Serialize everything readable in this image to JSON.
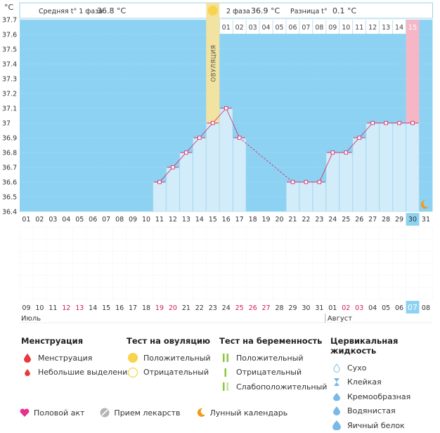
{
  "chart_data": {
    "type": "line",
    "ylabel": "°C",
    "ylim": [
      36.4,
      37.7
    ],
    "yticks": [
      "37.7",
      "37.6",
      "37.5",
      "37.4",
      "37.3",
      "37.2",
      "37.1",
      "37",
      "36.9",
      "36.8",
      "36.7",
      "36.6",
      "36.5",
      "36.4"
    ],
    "cycle_days": [
      "01",
      "02",
      "03",
      "04",
      "05",
      "06",
      "07",
      "08",
      "09",
      "10",
      "11",
      "12",
      "13",
      "14",
      "15",
      "16",
      "17",
      "18",
      "19",
      "20",
      "21",
      "22",
      "23",
      "24",
      "25",
      "26",
      "27",
      "28",
      "29",
      "30",
      "31"
    ],
    "temps": [
      null,
      null,
      null,
      null,
      null,
      null,
      null,
      null,
      null,
      null,
      36.6,
      36.7,
      36.8,
      36.9,
      37.0,
      37.1,
      36.9,
      null,
      null,
      null,
      36.6,
      36.6,
      36.6,
      36.8,
      36.8,
      36.9,
      37.0,
      37.0,
      37.0,
      37.0,
      null
    ],
    "phase2_days": [
      "01",
      "02",
      "03",
      "04",
      "05",
      "06",
      "07",
      "08",
      "09",
      "10",
      "11",
      "12",
      "13",
      "14",
      "15"
    ],
    "ovulation_day": 15,
    "predicted_period_day": 30,
    "today_day": 30,
    "dates": [
      "09",
      "10",
      "11",
      "12",
      "13",
      "14",
      "15",
      "16",
      "17",
      "18",
      "19",
      "20",
      "21",
      "22",
      "23",
      "24",
      "25",
      "26",
      "27",
      "28",
      "29",
      "30",
      "31",
      "01",
      "02",
      "03",
      "04",
      "05",
      "06",
      "07",
      "08"
    ],
    "highlight_dates": [
      3,
      4,
      10,
      11,
      16,
      17,
      18,
      24,
      25
    ],
    "month1": "Июль",
    "month2": "Август"
  },
  "header": {
    "avg1_label": "Средняя t° 1 фаза",
    "avg1_value": "36.8 °C",
    "avg2_label": "2 фаза",
    "avg2_value": "36.9 °C",
    "diff_label": "Разница t°",
    "diff_value": "0.1 °C",
    "ovulation_label": "ОВУЛЯЦИЯ"
  },
  "legend": {
    "menstruation": {
      "title": "Менструация",
      "items": [
        "Менструация",
        "Небольшие выделения"
      ]
    },
    "ovulation_test": {
      "title": "Тест на овуляцию",
      "items": [
        "Положительный",
        "Отрицательный"
      ]
    },
    "pregnancy_test": {
      "title": "Тест на беременность",
      "items": [
        "Положительный",
        "Отрицательный",
        "Слабоположительный"
      ]
    },
    "cervical": {
      "title": "Цервикальная жидкость",
      "items": [
        "Сухо",
        "Клейкая",
        "Кремообразная",
        "Водянистая",
        "Яичный белок"
      ]
    },
    "bottom": [
      "Половой акт",
      "Прием лекарств",
      "Лунный календарь"
    ]
  },
  "colors": {
    "sky": "#8dd2f2",
    "bar": "#d2ecfa",
    "line": "#d6336c",
    "ovulation": "#f3e3a0",
    "period": "#f5b7c6",
    "today": "#8dd2f2",
    "red_date": "#d11a5a",
    "drop": "#e8383d",
    "heart": "#e8318c",
    "moon": "#f29a1a",
    "sun": "#f8d34b",
    "pill": "#b4b4b4",
    "preg_pos": "#8cc63f",
    "preg_weak": "#c6e09b",
    "cervical": "#7ab8e5"
  }
}
